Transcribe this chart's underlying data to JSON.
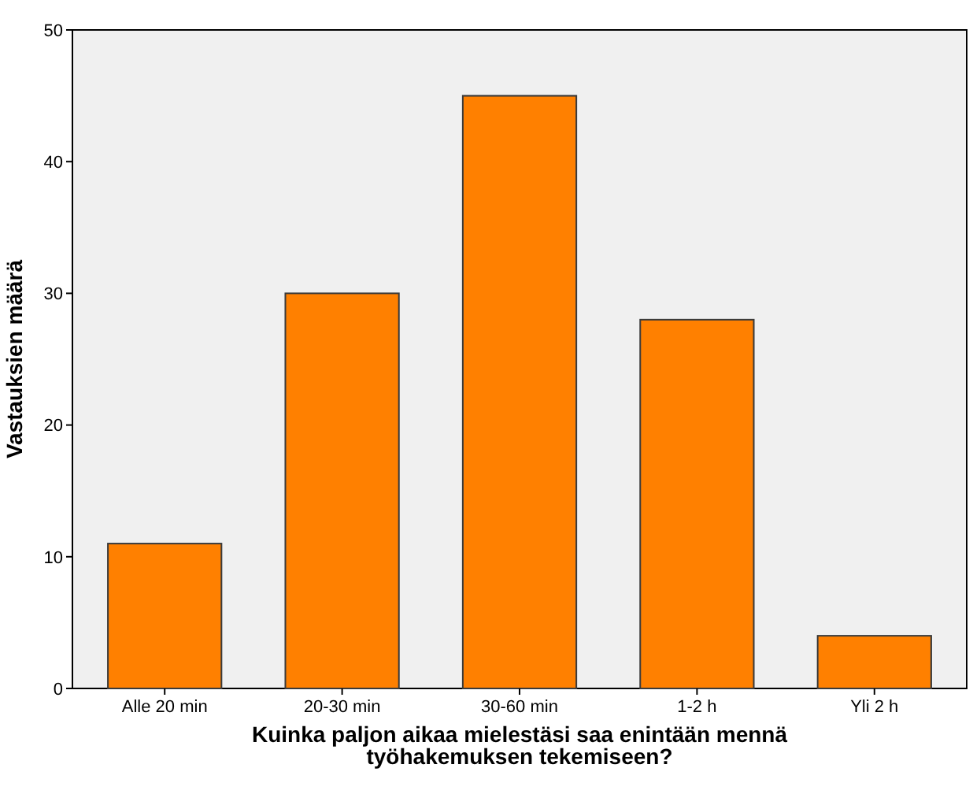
{
  "chart_data": {
    "type": "bar",
    "xlabel": "Kuinka paljon aikaa mielestäsi saa enintään mennä työhakemuksen tekemiseen?",
    "ylabel": "Vastauksien määrä",
    "categories": [
      "Alle 20 min",
      "20-30 min",
      "30-60 min",
      "1-2 h",
      "Yli 2 h"
    ],
    "values": [
      11,
      30,
      45,
      28,
      4
    ],
    "color": "#ff8000",
    "ylim": [
      0,
      50
    ],
    "yticks": [
      0,
      10,
      20,
      30,
      40,
      50
    ],
    "grid": false
  }
}
